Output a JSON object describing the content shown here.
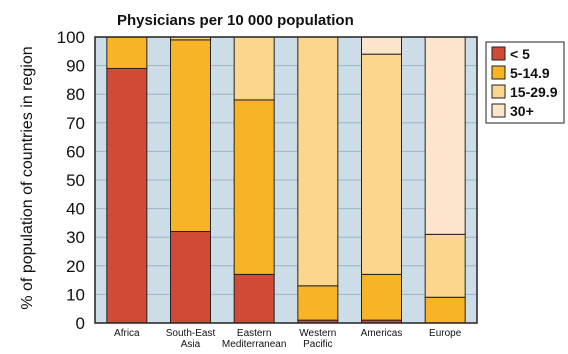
{
  "chart_data": {
    "type": "bar",
    "stacked": true,
    "title": "Physicians per 10 000 population",
    "ylabel": "% of population of countries in region",
    "xlabel": "",
    "ylim": [
      0,
      100
    ],
    "yticks": [
      0,
      10,
      20,
      30,
      40,
      50,
      60,
      70,
      80,
      90,
      100
    ],
    "grid": true,
    "legend_position": "right",
    "categories": [
      [
        "Africa"
      ],
      [
        "South-East",
        "Asia"
      ],
      [
        "Eastern",
        "Mediterranean"
      ],
      [
        "Western",
        "Pacific"
      ],
      [
        "Americas"
      ],
      [
        "Europe"
      ]
    ],
    "series": [
      {
        "name": "< 5",
        "color": "#d04a35",
        "values": [
          89,
          32,
          17,
          1,
          1,
          0
        ]
      },
      {
        "name": "5-14.9",
        "color": "#f9b426",
        "values": [
          11,
          67,
          61,
          12,
          16,
          9
        ]
      },
      {
        "name": "15-29.9",
        "color": "#fcd68e",
        "values": [
          0,
          1,
          22,
          87,
          77,
          22
        ]
      },
      {
        "name": "30+",
        "color": "#fde5cc",
        "values": [
          0,
          0,
          0,
          0,
          6,
          69
        ]
      }
    ],
    "colors": {
      "plot_background": "#cddde7",
      "gridline": "#9ab4c6",
      "frame": "#222222"
    }
  }
}
